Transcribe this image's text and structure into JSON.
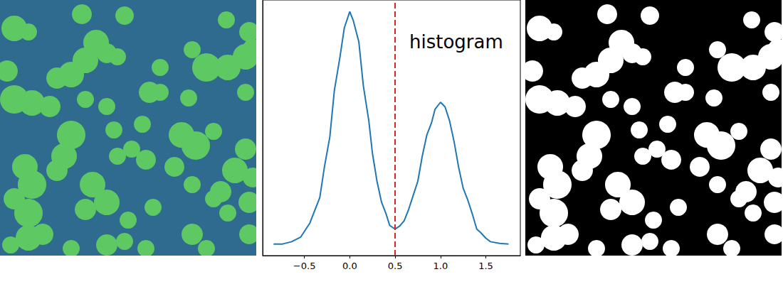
{
  "chart_data": [
    {
      "type": "image",
      "tick_labels": false,
      "xlim": [
        0,
        360
      ],
      "ylim": [
        0,
        360
      ],
      "colors": [
        "#2f6b8e",
        "#5ec962"
      ],
      "blobs": [
        [
          20,
          40,
          18
        ],
        [
          40,
          45,
          12
        ],
        [
          115,
          20,
          14
        ],
        [
          175,
          22,
          13
        ],
        [
          318,
          28,
          12
        ],
        [
          350,
          45,
          14
        ],
        [
          345,
          80,
          18
        ],
        [
          355,
          70,
          15
        ],
        [
          270,
          70,
          12
        ],
        [
          290,
          95,
          20
        ],
        [
          320,
          95,
          18
        ],
        [
          225,
          95,
          12
        ],
        [
          135,
          60,
          18
        ],
        [
          120,
          85,
          18
        ],
        [
          100,
          105,
          18
        ],
        [
          150,
          75,
          14
        ],
        [
          165,
          80,
          12
        ],
        [
          80,
          110,
          15
        ],
        [
          10,
          100,
          15
        ],
        [
          20,
          140,
          20
        ],
        [
          45,
          145,
          18
        ],
        [
          70,
          150,
          15
        ],
        [
          120,
          140,
          12
        ],
        [
          150,
          150,
          12
        ],
        [
          210,
          130,
          15
        ],
        [
          225,
          130,
          12
        ],
        [
          265,
          138,
          12
        ],
        [
          345,
          130,
          12
        ],
        [
          160,
          183,
          12
        ],
        [
          200,
          175,
          12
        ],
        [
          100,
          190,
          20
        ],
        [
          90,
          220,
          18
        ],
        [
          80,
          240,
          15
        ],
        [
          255,
          190,
          18
        ],
        [
          275,
          205,
          20
        ],
        [
          300,
          185,
          12
        ],
        [
          165,
          220,
          12
        ],
        [
          185,
          210,
          12
        ],
        [
          205,
          225,
          14
        ],
        [
          245,
          235,
          14
        ],
        [
          345,
          210,
          15
        ],
        [
          330,
          240,
          18
        ],
        [
          355,
          250,
          14
        ],
        [
          310,
          270,
          15
        ],
        [
          300,
          280,
          12
        ],
        [
          35,
          235,
          18
        ],
        [
          45,
          260,
          20
        ],
        [
          20,
          280,
          15
        ],
        [
          40,
          300,
          20
        ],
        [
          130,
          260,
          18
        ],
        [
          150,
          285,
          18
        ],
        [
          120,
          295,
          15
        ],
        [
          180,
          310,
          12
        ],
        [
          215,
          292,
          12
        ],
        [
          270,
          260,
          12
        ],
        [
          320,
          300,
          12
        ],
        [
          350,
          285,
          15
        ],
        [
          40,
          335,
          18
        ],
        [
          60,
          330,
          15
        ],
        [
          15,
          345,
          12
        ],
        [
          100,
          350,
          12
        ],
        [
          150,
          345,
          15
        ],
        [
          175,
          340,
          12
        ],
        [
          205,
          350,
          12
        ],
        [
          270,
          330,
          15
        ],
        [
          290,
          350,
          12
        ],
        [
          350,
          330,
          14
        ]
      ]
    },
    {
      "type": "line",
      "annotation": "histogram",
      "color": "#1f77b4",
      "threshold": 0.5,
      "tick_labels": "x",
      "x": [
        -0.84,
        -0.74,
        -0.64,
        -0.54,
        -0.44,
        -0.33,
        -0.28,
        -0.22,
        -0.17,
        -0.11,
        -0.06,
        0.0,
        0.04,
        0.1,
        0.15,
        0.21,
        0.25,
        0.3,
        0.35,
        0.4,
        0.44,
        0.5,
        0.55,
        0.6,
        0.65,
        0.7,
        0.75,
        0.8,
        0.85,
        0.9,
        0.94,
        1.0,
        1.05,
        1.1,
        1.15,
        1.2,
        1.25,
        1.3,
        1.35,
        1.4,
        1.44,
        1.5,
        1.55,
        1.65,
        1.75
      ],
      "values": [
        0,
        0,
        1,
        3,
        9,
        20,
        33,
        46,
        66,
        80,
        93,
        100,
        96,
        87,
        68,
        53,
        39,
        27,
        18,
        13,
        8,
        6.4,
        7.7,
        10,
        15,
        21,
        27,
        38,
        47,
        52,
        58,
        61,
        59,
        53,
        44,
        33,
        24,
        19,
        13,
        6.4,
        5,
        2.5,
        1,
        0.3,
        0
      ],
      "xlim": [
        -0.96,
        1.88
      ],
      "xticks": [
        {
          "value": -0.5,
          "label": "−0.5"
        },
        {
          "value": 0,
          "label": "0.0"
        },
        {
          "value": 0.5,
          "label": "0.5"
        },
        {
          "value": 1,
          "label": "1.0"
        },
        {
          "value": 1.5,
          "label": "1.5"
        }
      ],
      "ylim": [
        -5,
        105
      ]
    },
    {
      "type": "image",
      "tick_labels": false,
      "xlim": [
        0,
        360
      ],
      "ylim": [
        0,
        360
      ],
      "colors": [
        "#000000",
        "#ffffff"
      ],
      "blobs": [
        [
          20,
          40,
          18
        ],
        [
          40,
          45,
          12
        ],
        [
          115,
          20,
          14
        ],
        [
          175,
          22,
          13
        ],
        [
          318,
          28,
          12
        ],
        [
          350,
          45,
          14
        ],
        [
          345,
          80,
          18
        ],
        [
          355,
          70,
          15
        ],
        [
          270,
          70,
          12
        ],
        [
          290,
          95,
          20
        ],
        [
          320,
          95,
          18
        ],
        [
          225,
          95,
          12
        ],
        [
          135,
          60,
          18
        ],
        [
          120,
          85,
          18
        ],
        [
          100,
          105,
          18
        ],
        [
          150,
          75,
          14
        ],
        [
          165,
          80,
          12
        ],
        [
          80,
          110,
          15
        ],
        [
          10,
          100,
          15
        ],
        [
          20,
          140,
          20
        ],
        [
          45,
          145,
          18
        ],
        [
          70,
          150,
          15
        ],
        [
          120,
          140,
          12
        ],
        [
          150,
          150,
          12
        ],
        [
          210,
          130,
          15
        ],
        [
          225,
          130,
          12
        ],
        [
          265,
          138,
          12
        ],
        [
          345,
          130,
          12
        ],
        [
          160,
          183,
          12
        ],
        [
          200,
          175,
          12
        ],
        [
          100,
          190,
          20
        ],
        [
          90,
          220,
          18
        ],
        [
          80,
          240,
          15
        ],
        [
          255,
          190,
          18
        ],
        [
          275,
          205,
          20
        ],
        [
          300,
          185,
          12
        ],
        [
          165,
          220,
          12
        ],
        [
          185,
          210,
          12
        ],
        [
          205,
          225,
          14
        ],
        [
          245,
          235,
          14
        ],
        [
          345,
          210,
          15
        ],
        [
          330,
          240,
          18
        ],
        [
          355,
          250,
          14
        ],
        [
          310,
          270,
          15
        ],
        [
          300,
          280,
          12
        ],
        [
          35,
          235,
          18
        ],
        [
          45,
          260,
          20
        ],
        [
          20,
          280,
          15
        ],
        [
          40,
          300,
          20
        ],
        [
          130,
          260,
          18
        ],
        [
          150,
          285,
          18
        ],
        [
          120,
          295,
          15
        ],
        [
          180,
          310,
          12
        ],
        [
          215,
          292,
          12
        ],
        [
          270,
          260,
          12
        ],
        [
          320,
          300,
          12
        ],
        [
          350,
          285,
          15
        ],
        [
          40,
          335,
          18
        ],
        [
          60,
          330,
          15
        ],
        [
          15,
          345,
          12
        ],
        [
          100,
          350,
          12
        ],
        [
          150,
          345,
          15
        ],
        [
          175,
          340,
          12
        ],
        [
          205,
          350,
          12
        ],
        [
          270,
          330,
          15
        ],
        [
          290,
          350,
          12
        ],
        [
          350,
          330,
          14
        ]
      ]
    }
  ]
}
